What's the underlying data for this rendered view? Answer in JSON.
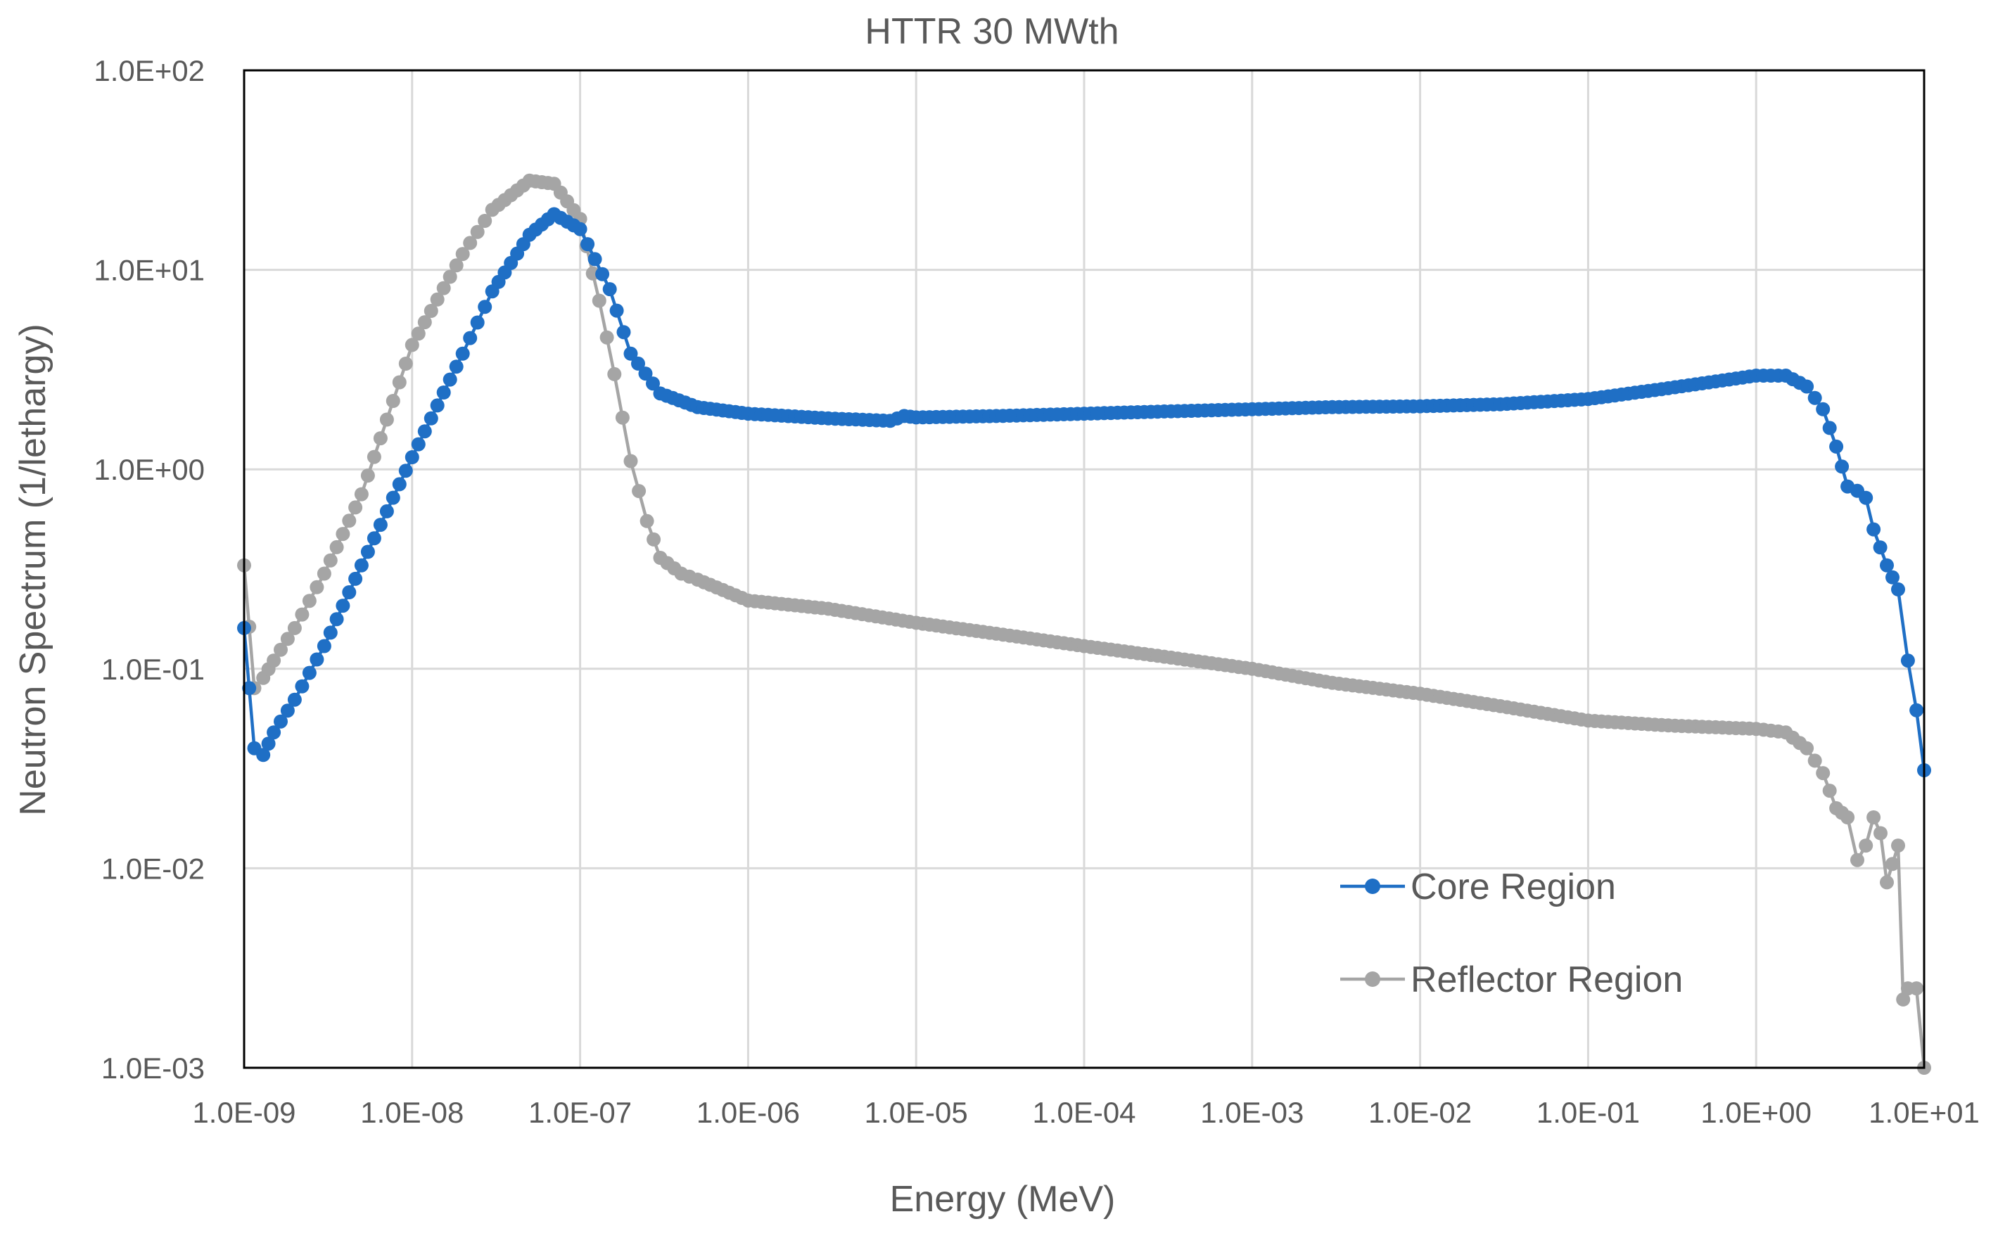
{
  "chart_data": {
    "type": "line",
    "title": "HTTR 30 MWth",
    "xlabel": "Energy (MeV)",
    "ylabel": "Neutron Spectrum (1/lethargy)",
    "x_scale": "log",
    "y_scale": "log",
    "xlim": [
      1e-09,
      10
    ],
    "ylim": [
      0.001,
      100
    ],
    "grid": true,
    "legend_position": "lower-right",
    "x_tick_values": [
      1e-09,
      1e-08,
      1e-07,
      1e-06,
      1e-05,
      0.0001,
      0.001,
      0.01,
      0.1,
      1,
      10
    ],
    "x_tick_labels": [
      "1.0E-09",
      "1.0E-08",
      "1.0E-07",
      "1.0E-06",
      "1.0E-05",
      "1.0E-04",
      "1.0E-03",
      "1.0E-02",
      "1.0E-01",
      "1.0E+00",
      "1.0E+01"
    ],
    "y_tick_values": [
      0.001,
      0.01,
      0.1,
      1,
      10,
      100
    ],
    "y_tick_labels": [
      "1.0E-03",
      "1.0E-02",
      "1.0E-01",
      "1.0E+00",
      "1.0E+01",
      "1.0E+02"
    ],
    "series": [
      {
        "name": "Core Region",
        "color": "#1f6fc5",
        "x": [
          1e-09,
          1.15e-09,
          1.3e-09,
          1.5e-09,
          2e-09,
          3e-09,
          5e-09,
          1e-08,
          2e-08,
          3e-08,
          5e-08,
          7e-08,
          1e-07,
          1.5e-07,
          2e-07,
          3e-07,
          5e-07,
          1e-06,
          3e-06,
          7e-06,
          8.5e-06,
          1e-05,
          3e-05,
          0.0001,
          0.0003,
          0.001,
          0.003,
          0.01,
          0.03,
          0.1,
          0.3,
          1,
          1.5,
          2,
          2.5,
          3,
          3.5,
          4,
          4.5,
          5,
          6,
          7,
          8,
          9,
          10
        ],
        "y": [
          0.16,
          0.04,
          0.037,
          0.048,
          0.07,
          0.13,
          0.33,
          1.15,
          3.8,
          7.8,
          15,
          19,
          16,
          8,
          3.8,
          2.4,
          2.05,
          1.9,
          1.8,
          1.75,
          1.85,
          1.82,
          1.85,
          1.9,
          1.95,
          2.0,
          2.05,
          2.07,
          2.12,
          2.25,
          2.55,
          2.95,
          2.95,
          2.6,
          2.0,
          1.3,
          0.82,
          0.78,
          0.72,
          0.5,
          0.33,
          0.25,
          0.11,
          0.062,
          0.031
        ]
      },
      {
        "name": "Reflector Region",
        "color": "#a5a5a5",
        "x": [
          1e-09,
          1.15e-09,
          1.3e-09,
          1.5e-09,
          2e-09,
          3e-09,
          5e-09,
          1e-08,
          2e-08,
          3e-08,
          5e-08,
          7e-08,
          1e-07,
          1.3e-07,
          1.6e-07,
          2e-07,
          2.5e-07,
          3e-07,
          4e-07,
          5e-07,
          1e-06,
          3e-06,
          1e-05,
          3e-05,
          0.0001,
          0.0003,
          0.001,
          0.003,
          0.01,
          0.03,
          0.1,
          0.3,
          1,
          1.5,
          2,
          2.5,
          3,
          3.5,
          4,
          4.5,
          5,
          5.5,
          6,
          7,
          7.5,
          8,
          9,
          10
        ],
        "y": [
          0.33,
          0.08,
          0.09,
          0.11,
          0.16,
          0.3,
          0.75,
          4.2,
          12,
          20,
          28,
          27,
          18,
          7,
          3,
          1.1,
          0.55,
          0.36,
          0.3,
          0.28,
          0.22,
          0.2,
          0.17,
          0.15,
          0.13,
          0.115,
          0.1,
          0.085,
          0.075,
          0.065,
          0.055,
          0.052,
          0.05,
          0.048,
          0.04,
          0.03,
          0.02,
          0.018,
          0.011,
          0.013,
          0.018,
          0.015,
          0.0085,
          0.013,
          0.0022,
          0.0025,
          0.0025,
          0.001
        ]
      }
    ]
  }
}
